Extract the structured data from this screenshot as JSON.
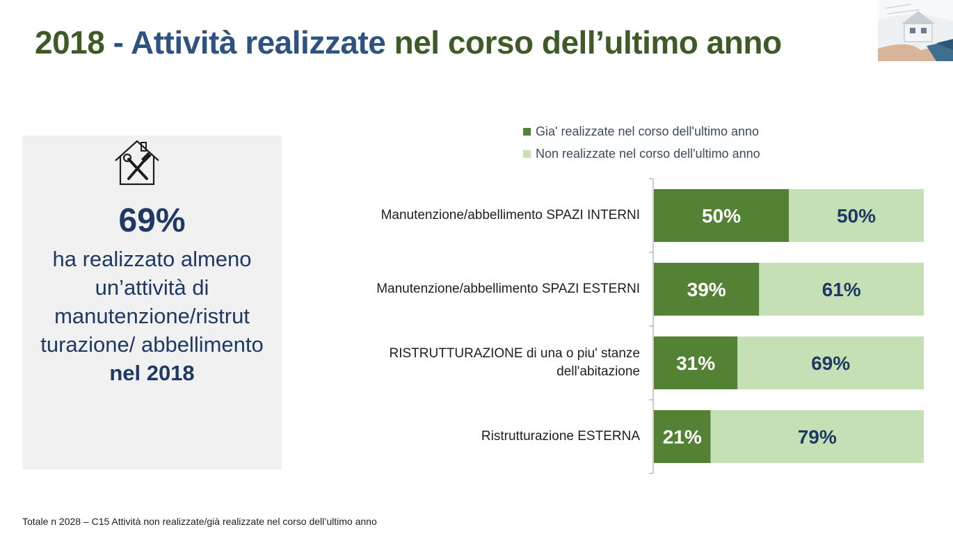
{
  "title": {
    "year": "2018",
    "dash": " - ",
    "part_blue": "Attività realizzate",
    "part_green": " nel corso dell’ultimo anno"
  },
  "kpi": {
    "icon": "house-tools-icon",
    "percent": "69%",
    "text_before": "ha realizzato almeno un’attività di manutenzione/ristrut turazione/ abbellimento",
    "text_bold": "nel 2018"
  },
  "colors": {
    "realizzate": "#548235",
    "non_realizzate": "#c5e0b4",
    "label_dark": "#1f3864",
    "label_light": "#ffffff"
  },
  "chart_data": {
    "type": "bar",
    "orientation": "horizontal",
    "stacked": true,
    "categories": [
      "Manutenzione/abbellimento SPAZI INTERNI",
      "Manutenzione/abbellimento SPAZI ESTERNI",
      "RISTRUTTURAZIONE di una o piu' stanze dell'abitazione",
      "Ristrutturazione ESTERNA"
    ],
    "series": [
      {
        "name": "Gia' realizzate nel corso dell'ultimo anno",
        "values": [
          50,
          39,
          31,
          21
        ]
      },
      {
        "name": "Non realizzate nel corso dell'ultimo anno",
        "values": [
          50,
          61,
          69,
          79
        ]
      }
    ],
    "value_suffix": "%",
    "xlim": [
      0,
      100
    ],
    "legend_position": "top"
  },
  "footnote": "Totale n 2028 – C15 Attività non realizzate/già realizzate nel corso dell’ultimo anno"
}
